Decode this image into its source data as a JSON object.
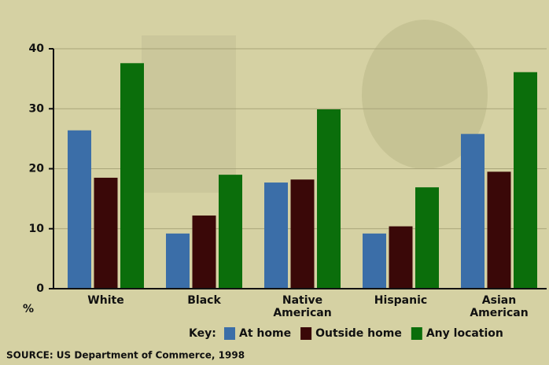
{
  "chart_data": {
    "type": "bar",
    "y_label": "%",
    "categories": [
      "White",
      "Black",
      "Native American",
      "Hispanic",
      "Asian American"
    ],
    "series": [
      {
        "name": "At home",
        "color": "#3b6ea8",
        "values": [
          26.4,
          9.2,
          17.7,
          9.2,
          25.8
        ]
      },
      {
        "name": "Outside home",
        "color": "#3a0808",
        "values": [
          18.5,
          12.2,
          18.2,
          10.4,
          19.5
        ]
      },
      {
        "name": "Any location",
        "color": "#0b6e0b",
        "values": [
          37.6,
          19.0,
          29.9,
          16.9,
          36.1
        ]
      }
    ],
    "ylim": [
      0,
      40
    ],
    "yticks": [
      0,
      10,
      20,
      30,
      40
    ],
    "grid": true,
    "legend_title": "Key:",
    "source": "SOURCE: US Department of Commerce, 1998"
  }
}
